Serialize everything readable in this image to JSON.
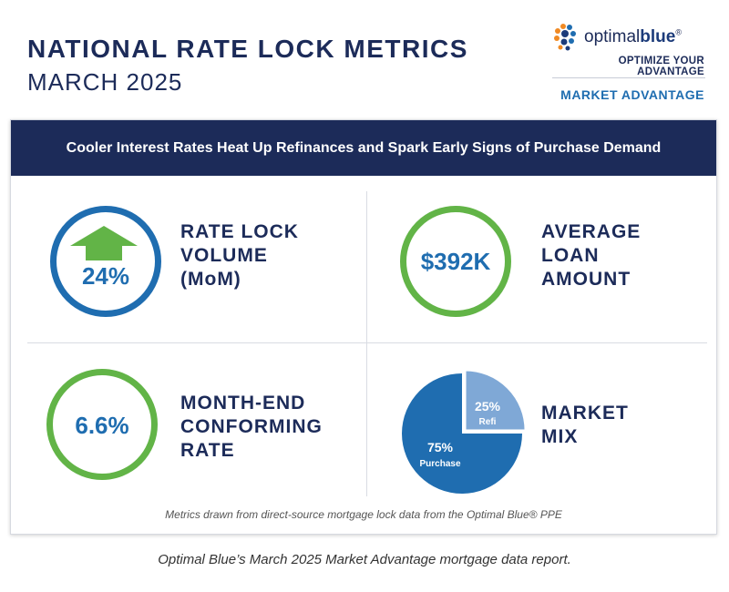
{
  "header": {
    "title": "NATIONAL RATE LOCK METRICS",
    "subtitle": "MARCH 2025"
  },
  "brand": {
    "logo_light": "optimal",
    "logo_bold": "blue",
    "logo_mark": "®",
    "tagline": "OPTIMIZE YOUR ADVANTAGE",
    "section": "MARKET ADVANTAGE"
  },
  "banner": "Cooler Interest Rates Heat Up Refinances and Spark Early Signs of Purchase Demand",
  "metrics": {
    "volume": {
      "value": "24%",
      "label_lines": [
        "RATE LOCK",
        "VOLUME",
        "(MoM)"
      ],
      "direction": "up",
      "icon": "up-arrow-icon"
    },
    "loan": {
      "value": "$392K",
      "label_lines": [
        "AVERAGE",
        "LOAN",
        "AMOUNT"
      ]
    },
    "rate": {
      "value": "6.6%",
      "label_lines": [
        "MONTH-END",
        "CONFORMING",
        "RATE"
      ]
    },
    "mix": {
      "label_lines": [
        "MARKET",
        "MIX"
      ],
      "purchase_pct": "75%",
      "purchase_label": "Purchase",
      "refi_pct": "25%",
      "refi_label": "Refi"
    }
  },
  "chart_data": {
    "type": "pie",
    "title": "MARKET MIX",
    "categories": [
      "Purchase",
      "Refi"
    ],
    "values": [
      75,
      25
    ],
    "colors": [
      "#1f6db0",
      "#7fa8d6"
    ]
  },
  "footnote": "Metrics drawn from direct-source mortgage lock data from the Optimal Blue® PPE",
  "caption": "Optimal Blue’s March 2025 Market Advantage mortgage data report.",
  "colors": {
    "navy": "#1c2b59",
    "blue": "#1f6db0",
    "green": "#62b447",
    "light_blue": "#7fa8d6"
  }
}
